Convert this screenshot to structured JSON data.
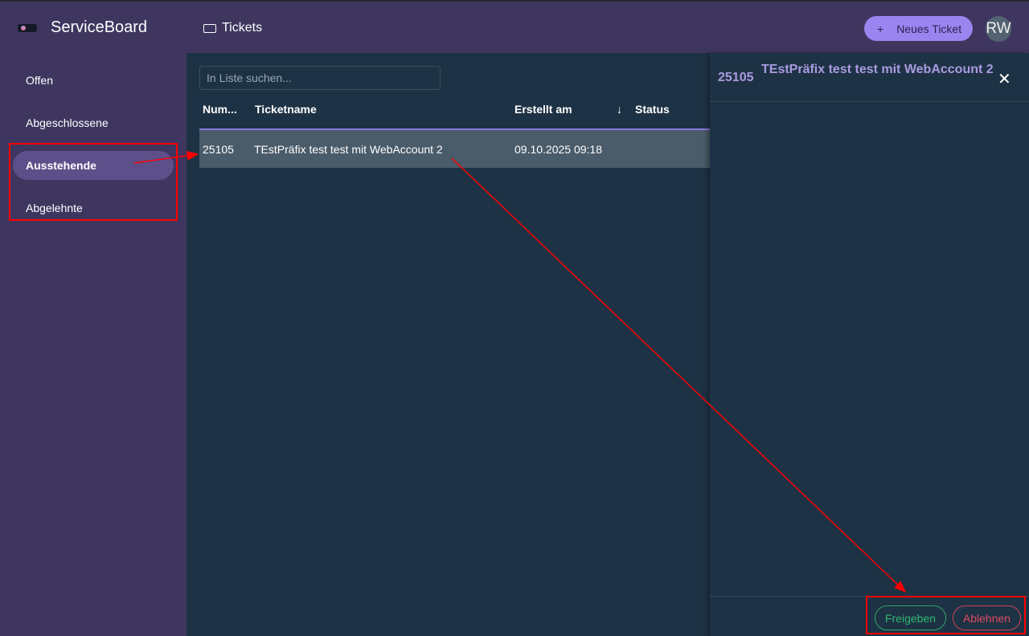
{
  "header": {
    "app_title": "ServiceBoard",
    "nav_label": "Tickets",
    "new_ticket_label": "Neues Ticket",
    "new_ticket_icon": "+",
    "avatar_initials": "RW"
  },
  "sidebar": {
    "items": [
      {
        "label": "Offen"
      },
      {
        "label": "Abgeschlossene"
      },
      {
        "label": "Ausstehende",
        "active": true
      },
      {
        "label": "Abgelehnte"
      }
    ]
  },
  "list": {
    "search_placeholder": "In Liste suchen...",
    "columns": [
      "Num...",
      "Ticketname",
      "Erstellt am",
      "Status"
    ],
    "sort_icon": "↓",
    "rows": [
      {
        "number": "25105",
        "name": "TEstPräfix test test mit WebAccount 2",
        "created": "09.10.2025 09:18",
        "status": ""
      }
    ]
  },
  "detail": {
    "number": "25105",
    "title": "TEstPräfix test test mit WebAccount 2",
    "close_icon": "✕",
    "approve_label": "Freigeben",
    "reject_label": "Ablehnen"
  },
  "colors": {
    "header": "#3f3660",
    "accent": "#9a85f0",
    "approve": "#2fb870",
    "reject": "#e04a60",
    "annotation": "#ff0000"
  }
}
